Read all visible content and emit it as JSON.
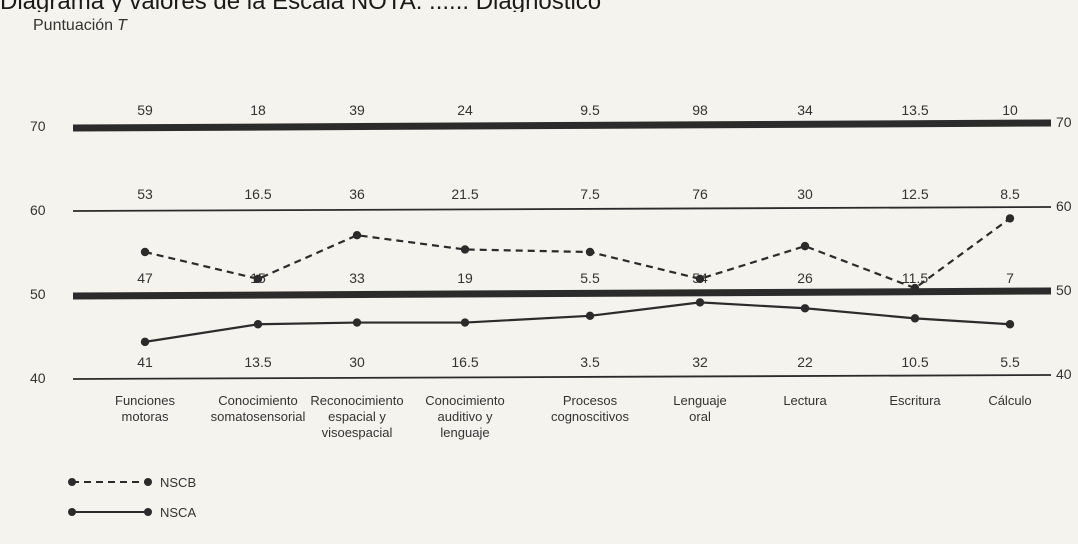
{
  "header_text": "Diagrama y valores de la Escala NOTA: ...... Diagnostico",
  "chart_data": {
    "type": "line",
    "ylabel": "Puntuación",
    "ylabel_italic": "T",
    "ylim": [
      40,
      70
    ],
    "yticks_left": [
      "70",
      "60",
      "50",
      "40"
    ],
    "yticks_right": [
      "70",
      "60",
      "50",
      "40"
    ],
    "yticks_values": [
      70,
      60,
      50,
      40
    ],
    "categories": [
      "Funciones\nmotoras",
      "Conocimiento\nsomatosensorial",
      "Reconocimiento\nespacial y\nvisoespacial",
      "Conocimiento\nauditivo y\nlenguaje",
      "Procesos\ncognoscitivos",
      "Lenguaje\noral",
      "Lectura",
      "Escritura",
      "Cálculo"
    ],
    "raw_score_rows": [
      {
        "level": 70,
        "values": [
          "59",
          "18",
          "39",
          "24",
          "9.5",
          "98",
          "34",
          "13.5",
          "10"
        ]
      },
      {
        "level": 60,
        "values": [
          "53",
          "16.5",
          "36",
          "21.5",
          "7.5",
          "76",
          "30",
          "12.5",
          "8.5"
        ]
      },
      {
        "level": 50,
        "values": [
          "47",
          "15",
          "33",
          "19",
          "5.5",
          "54",
          "26",
          "11.5",
          "7"
        ]
      },
      {
        "level": 40,
        "values": [
          "41",
          "13.5",
          "30",
          "16.5",
          "3.5",
          "32",
          "22",
          "10.5",
          "5.5"
        ]
      }
    ],
    "series": [
      {
        "name": "NSCB",
        "style": "dashed",
        "values": [
          55.0,
          51.8,
          57.0,
          55.3,
          55.0,
          51.8,
          55.7,
          50.7,
          59.0
        ]
      },
      {
        "name": "NSCA",
        "style": "solid",
        "values": [
          44.3,
          46.4,
          46.6,
          46.6,
          47.4,
          49.0,
          48.3,
          47.1,
          46.4
        ]
      }
    ],
    "legend_position": "bottom-left"
  },
  "colors": {
    "line": "#2b2b2b",
    "background": "#f5f3ee"
  }
}
